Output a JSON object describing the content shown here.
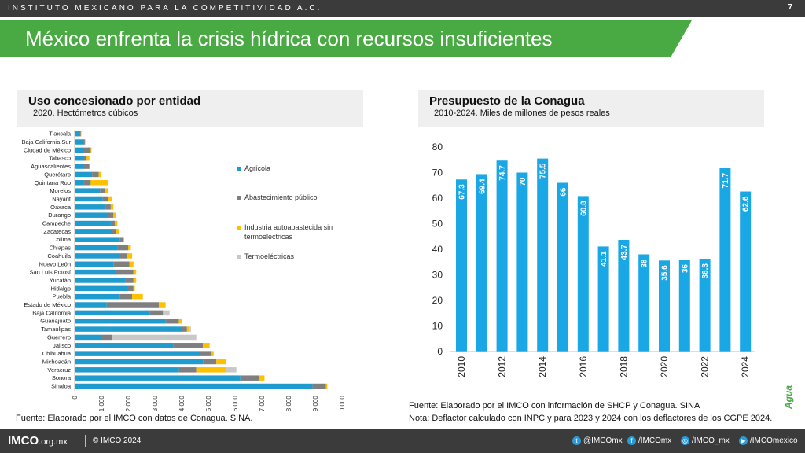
{
  "header": {
    "org": "INSTITUTO MEXICANO PARA LA COMPETITIVIDAD A.C.",
    "page": "7"
  },
  "title": "México enfrenta la crisis hídrica con recursos insuficientes",
  "left_panel": {
    "title": "Uso concesionado por entidad",
    "subtitle": "2020. Hectómetros cúbicos",
    "source": "Fuente: Elaborado por el IMCO con datos de Conagua. SINA."
  },
  "right_panel": {
    "title": "Presupuesto de la Conagua",
    "subtitle": "2010-2024. Miles de millones de pesos reales",
    "source": "Fuente: Elaborado por el IMCO con información de SHCP y Conagua. SINA",
    "note": "Nota: Deflactor calculado con INPC y para 2023 y 2024 con los deflactores de los CGPE 2024."
  },
  "side_tag": "Agua",
  "footer": {
    "logo_main": "IMCO",
    "logo_domain": ".org.mx",
    "copyright": "© IMCO 2024",
    "social": [
      {
        "icon": "twitter-icon",
        "glyph": "t",
        "label": "@IMCOmx"
      },
      {
        "icon": "facebook-icon",
        "glyph": "f",
        "label": "/IMCOmx"
      },
      {
        "icon": "instagram-icon",
        "glyph": "◎",
        "label": "/IMCO_mx"
      },
      {
        "icon": "youtube-icon",
        "glyph": "▶",
        "label": "/IMCOmexico"
      }
    ]
  },
  "colors": {
    "green": "#49a942",
    "dark": "#3b3b3b",
    "bar_blue": "#1aa7e6",
    "agricola": "#1f9ccd",
    "abastecimiento": "#7f7f7f",
    "industria": "#ffc000",
    "termo": "#c8c8c8"
  },
  "chart_data": [
    {
      "type": "bar",
      "orientation": "horizontal",
      "stacked": true,
      "categories": [
        "Tlaxcala",
        "Baja California Sur",
        "Ciudad de México",
        "Tabasco",
        "Aguascalientes",
        "Querétaro",
        "Quintana Roo",
        "Morelos",
        "Nayarit",
        "Oaxaca",
        "Durango",
        "Campeche",
        "Zacatecas",
        "Colima",
        "Chiapas",
        "Coahuila",
        "Nuevo León",
        "San Luis Potosí",
        "Yucatán",
        "Hidalgo",
        "Puebla",
        "Estado de México",
        "Baja California",
        "Guanajuato",
        "Tamaulipas",
        "Guerrero",
        "Jalisco",
        "Chihuahua",
        "Michoacán",
        "Veracruz",
        "Sonora",
        "Sinaloa"
      ],
      "series": [
        {
          "name": "Agrícola",
          "color": "#1f9ccd",
          "values": [
            150,
            300,
            300,
            300,
            300,
            650,
            350,
            950,
            1050,
            1150,
            1250,
            1350,
            1400,
            1700,
            1600,
            1650,
            1450,
            1500,
            1900,
            1950,
            1700,
            1200,
            2800,
            3400,
            4000,
            1000,
            3700,
            4700,
            4800,
            3900,
            6200,
            8900
          ]
        },
        {
          "name": "Abastecimiento público",
          "color": "#7f7f7f",
          "values": [
            80,
            80,
            300,
            150,
            250,
            250,
            250,
            200,
            200,
            200,
            200,
            150,
            150,
            100,
            400,
            300,
            600,
            700,
            300,
            250,
            450,
            1950,
            500,
            500,
            200,
            400,
            1100,
            400,
            500,
            650,
            700,
            500
          ]
        },
        {
          "name": "Industria autoabastecida sin termoeléctricas",
          "color": "#ffc000",
          "values": [
            20,
            20,
            30,
            100,
            30,
            100,
            650,
            100,
            150,
            100,
            100,
            100,
            100,
            50,
            100,
            200,
            150,
            100,
            100,
            50,
            400,
            250,
            50,
            100,
            100,
            0,
            250,
            100,
            350,
            1100,
            200,
            50
          ]
        },
        {
          "name": "Termoeléctricas",
          "color": "#c8c8c8",
          "values": [
            0,
            0,
            0,
            0,
            0,
            0,
            0,
            0,
            0,
            0,
            0,
            0,
            0,
            0,
            0,
            0,
            0,
            0,
            0,
            0,
            0,
            0,
            200,
            0,
            50,
            3150,
            0,
            0,
            0,
            400,
            0,
            0
          ]
        }
      ],
      "xlim": [
        0,
        10000
      ],
      "xticks": [
        "0",
        "1,000",
        "2,000",
        "3,000",
        "4,000",
        "5,000",
        "6,000",
        "7,000",
        "8,000",
        "9,000",
        "0,000"
      ],
      "legend": "right"
    },
    {
      "type": "bar",
      "categories": [
        "2010",
        "2011",
        "2012",
        "2013",
        "2014",
        "2015",
        "2016",
        "2017",
        "2018",
        "2019",
        "2020",
        "2021",
        "2022",
        "2023",
        "2024"
      ],
      "values": [
        67.3,
        69.4,
        74.7,
        70,
        75.5,
        66,
        60.8,
        41.1,
        43.7,
        38,
        35.6,
        36,
        36.3,
        71.7,
        62.6
      ],
      "value_labels": [
        "67.3",
        "69.4",
        "74.7",
        "70",
        "75.5",
        "66",
        "60.8",
        "41.1",
        "43.7",
        "38",
        "35.6",
        "36",
        "36.3",
        "71.7",
        "62.6"
      ],
      "xtick_labels": [
        "2010",
        "",
        "2012",
        "",
        "2014",
        "",
        "2016",
        "",
        "2018",
        "",
        "2020",
        "",
        "2022",
        "",
        "2024"
      ],
      "ylim": [
        0,
        80
      ],
      "yticks": [
        "0",
        "10",
        "20",
        "30",
        "40",
        "50",
        "60",
        "70",
        "80"
      ],
      "grid": false,
      "color": "#1aa7e6"
    }
  ]
}
